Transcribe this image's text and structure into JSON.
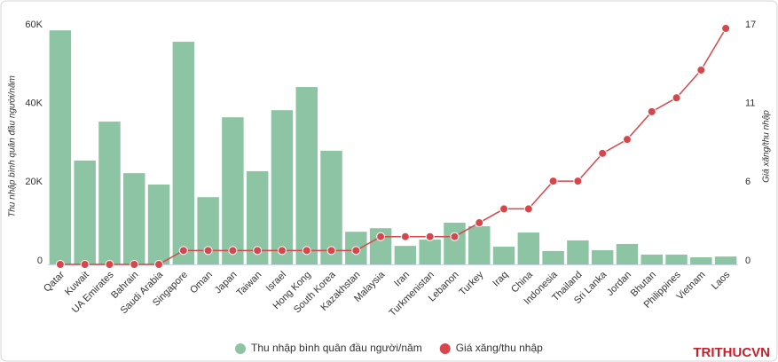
{
  "chart_data": {
    "type": "bar-line",
    "categories": [
      "Qatar",
      "Kuwait",
      "UA Emirates",
      "Bahrain",
      "Saudi Arabia",
      "Singapore",
      "Oman",
      "Japan",
      "Taiwan",
      "Israel",
      "Hong Kong",
      "South Korea",
      "Kazakhstan",
      "Malaysia",
      "Iran",
      "Turkmenistan",
      "Lebanon",
      "Turkey",
      "Iraq",
      "China",
      "Indonesia",
      "Thailand",
      "Sri Lanka",
      "Jordan",
      "Bhutan",
      "Philippines",
      "Vietnam",
      "Laos"
    ],
    "series": [
      {
        "name": "Thu nhập bình quân đầu người/năm",
        "type": "bar",
        "color": "#8cc4a4",
        "values": [
          59500,
          26400,
          36300,
          23200,
          20300,
          56600,
          17100,
          37400,
          23700,
          39200,
          45100,
          28900,
          8300,
          9200,
          4700,
          6300,
          10600,
          9700,
          4500,
          8100,
          3400,
          6100,
          3600,
          5200,
          2500,
          2500,
          1800,
          2000
        ]
      },
      {
        "name": "Giá xăng/thu nhập",
        "type": "line",
        "axis": "y2",
        "color": "#d7464b",
        "values": [
          0,
          0,
          0,
          0,
          0,
          1,
          1,
          1,
          1,
          1,
          1,
          1,
          1,
          2,
          2,
          2,
          2,
          3,
          4,
          4,
          6,
          6,
          8,
          9,
          11,
          12,
          14,
          17
        ]
      }
    ],
    "ylabel": "Thu nhập bình quân đầu người/năm",
    "y2label": "Giá xăng/thu nhập",
    "ylim": [
      0,
      60000
    ],
    "yticks": [
      0,
      {
        "value": 20000,
        "label": "20K"
      },
      {
        "value": 40000,
        "label": "40K"
      },
      {
        "value": 60000,
        "label": "60K"
      }
    ],
    "y2lim": [
      0,
      17
    ],
    "y2ticks": [
      0,
      {
        "value": 5.67,
        "label": "6"
      },
      {
        "value": 11.33,
        "label": "11"
      },
      17
    ],
    "legend": "bottom",
    "logo": "TRITHUCVN"
  }
}
